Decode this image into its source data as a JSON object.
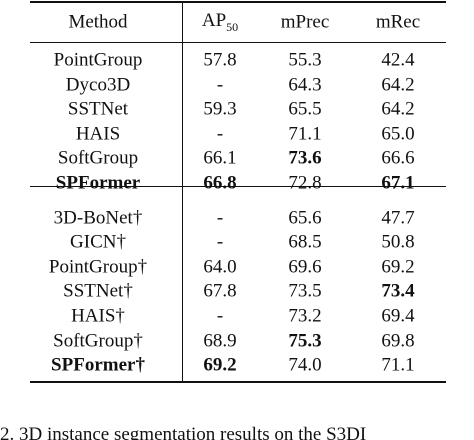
{
  "table": {
    "header": [
      "Method",
      {
        "text": "AP",
        "subscript": "50"
      },
      "mPrec",
      "mRec"
    ],
    "groups": [
      [
        {
          "cells": [
            "PointGroup",
            "57.8",
            "55.3",
            "42.4"
          ],
          "bold": []
        },
        {
          "cells": [
            "Dyco3D",
            "-",
            "64.3",
            "64.2"
          ],
          "bold": []
        },
        {
          "cells": [
            "SSTNet",
            "59.3",
            "65.5",
            "64.2"
          ],
          "bold": []
        },
        {
          "cells": [
            "HAIS",
            "-",
            "71.1",
            "65.0"
          ],
          "bold": []
        },
        {
          "cells": [
            "SoftGroup",
            "66.1",
            "73.6",
            "66.6"
          ],
          "bold": [
            2
          ]
        },
        {
          "cells": [
            "SPFormer",
            "66.8",
            "72.8",
            "67.1"
          ],
          "bold": [
            0,
            1,
            3
          ]
        }
      ],
      [
        {
          "cells": [
            "3D-BoNet†",
            "-",
            "65.6",
            "47.7"
          ],
          "bold": []
        },
        {
          "cells": [
            "GICN†",
            "-",
            "68.5",
            "50.8"
          ],
          "bold": []
        },
        {
          "cells": [
            "PointGroup†",
            "64.0",
            "69.6",
            "69.2"
          ],
          "bold": []
        },
        {
          "cells": [
            "SSTNet†",
            "67.8",
            "73.5",
            "73.4"
          ],
          "bold": [
            3
          ]
        },
        {
          "cells": [
            "HAIS†",
            "-",
            "73.2",
            "69.4"
          ],
          "bold": []
        },
        {
          "cells": [
            "SoftGroup†",
            "68.9",
            "75.3",
            "69.8"
          ],
          "bold": [
            2
          ]
        },
        {
          "cells": [
            "SPFormer†",
            "69.2",
            "74.0",
            "71.1"
          ],
          "bold": [
            0,
            1
          ]
        }
      ]
    ],
    "caption": "2. 3D instance segmentation results on the S3DI"
  }
}
